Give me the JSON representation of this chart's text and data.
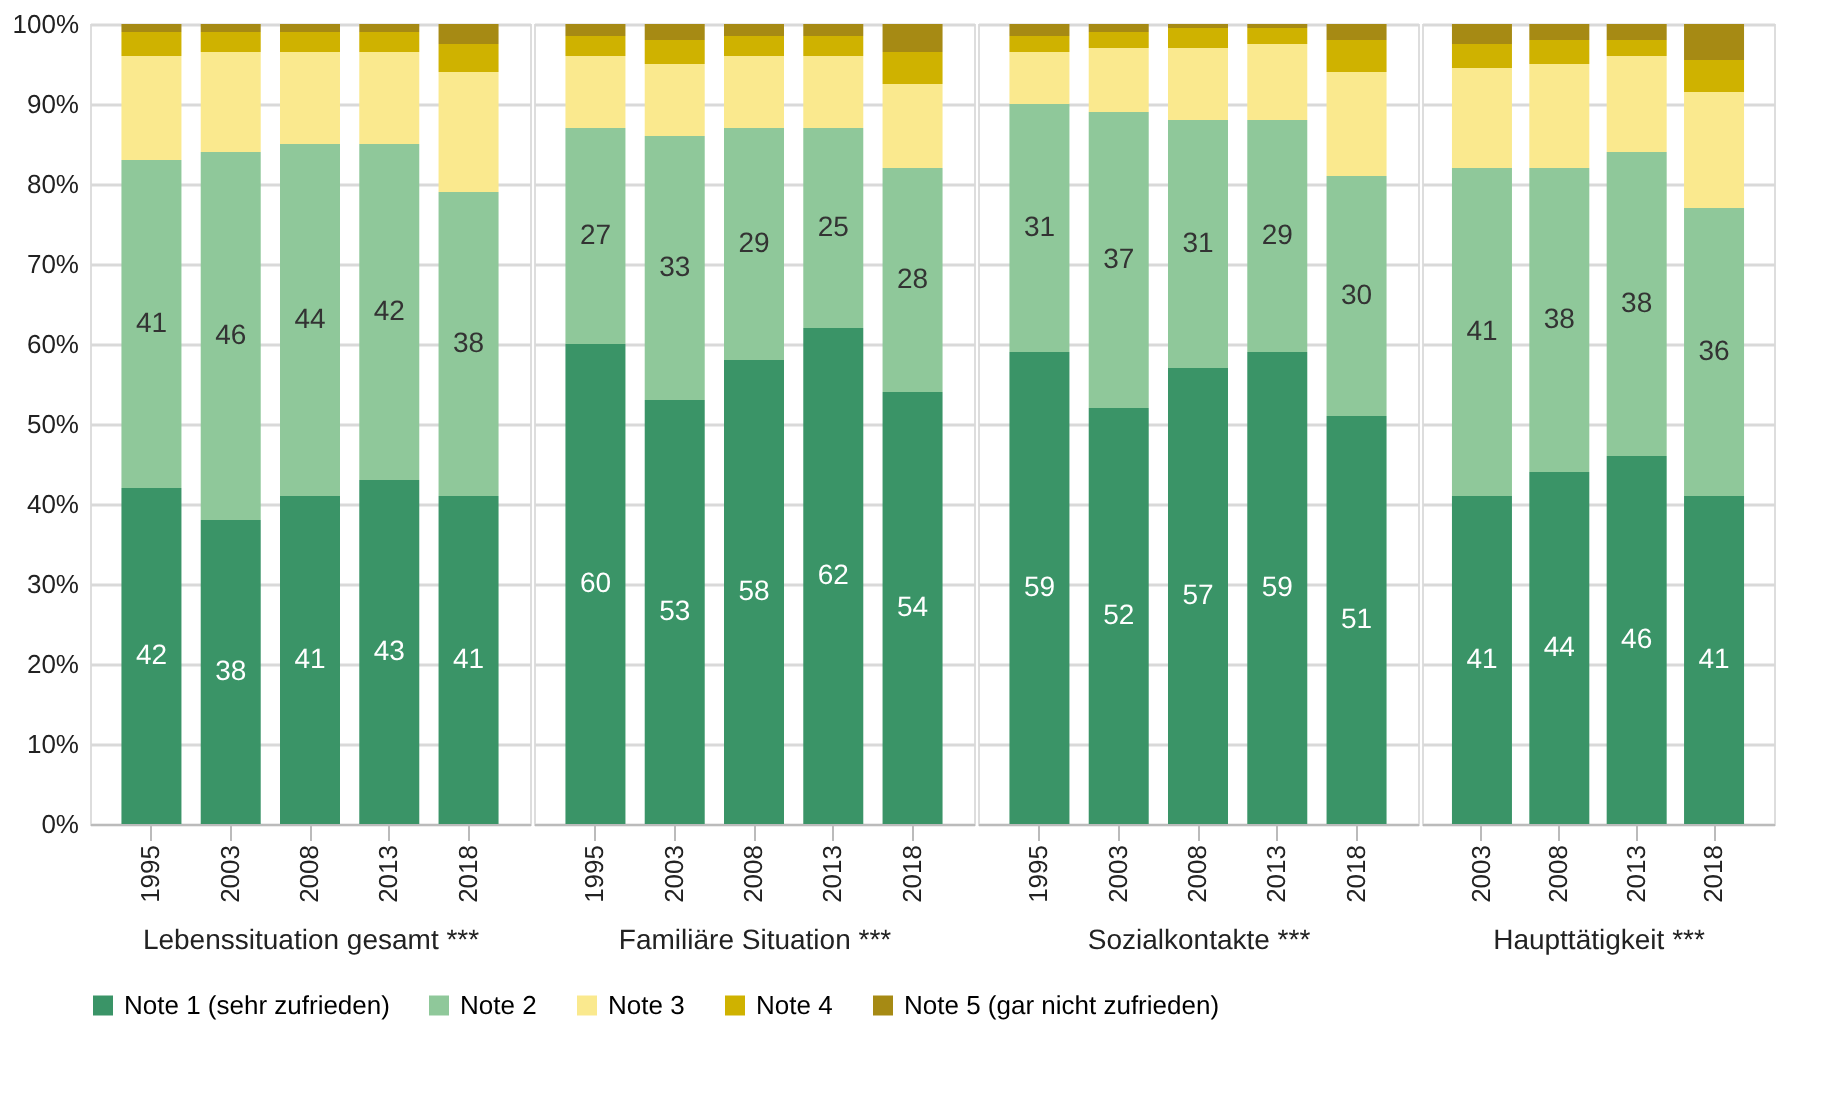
{
  "chart_data": [
    {
      "type": "bar",
      "stacked": true,
      "xlabel": "Lebenssituation gesamt ***",
      "categories": [
        "1995",
        "2003",
        "2008",
        "2013",
        "2018"
      ],
      "ylim": [
        0,
        100
      ],
      "yticks": [
        {
          "value": 0,
          "label": "0%"
        },
        {
          "value": 10,
          "label": "10%"
        },
        {
          "value": 20,
          "label": "20%"
        },
        {
          "value": 30,
          "label": "30%"
        },
        {
          "value": 40,
          "label": "40%"
        },
        {
          "value": 50,
          "label": "50%"
        },
        {
          "value": 60,
          "label": "60%"
        },
        {
          "value": 70,
          "label": "70%"
        },
        {
          "value": 80,
          "label": "80%"
        },
        {
          "value": 90,
          "label": "90%"
        },
        {
          "value": 100,
          "label": "100%"
        }
      ],
      "grid": "y",
      "legend": "bottom",
      "series": [
        {
          "name": "Note 1 (sehr zufrieden)",
          "color": "#3a9467",
          "values": [
            42,
            38,
            41,
            43,
            41
          ],
          "value_labels": [
            "42",
            "38",
            "41",
            "43",
            "41"
          ]
        },
        {
          "name": "Note 2",
          "color": "#8fc89a",
          "values": [
            41,
            46,
            44,
            42,
            38
          ],
          "value_labels": [
            "41",
            "46",
            "44",
            "42",
            "38"
          ]
        },
        {
          "name": "Note 3",
          "color": "#fae98e",
          "values": [
            13,
            12.5,
            11.5,
            11.5,
            15
          ]
        },
        {
          "name": "Note 4",
          "color": "#cfb200",
          "values": [
            3,
            2.5,
            2.5,
            2.5,
            3.5
          ]
        },
        {
          "name": "Note 5 (gar nicht zufrieden)",
          "color": "#a68a14",
          "values": [
            1,
            1,
            1,
            1,
            2.5
          ]
        }
      ]
    },
    {
      "type": "bar",
      "stacked": true,
      "xlabel": "Familiäre Situation ***",
      "categories": [
        "1995",
        "2003",
        "2008",
        "2013",
        "2018"
      ],
      "ylim": [
        0,
        100
      ],
      "yticks": [
        0,
        10,
        20,
        30,
        40,
        50,
        60,
        70,
        80,
        90,
        100
      ],
      "grid": "y",
      "tick_labels": "x",
      "series": [
        {
          "name": "Note 1 (sehr zufrieden)",
          "color": "#3a9467",
          "values": [
            60,
            53,
            58,
            62,
            54
          ],
          "value_labels": [
            "60",
            "53",
            "58",
            "62",
            "54"
          ]
        },
        {
          "name": "Note 2",
          "color": "#8fc89a",
          "values": [
            27,
            33,
            29,
            25,
            28
          ],
          "value_labels": [
            "27",
            "33",
            "29",
            "25",
            "28"
          ]
        },
        {
          "name": "Note 3",
          "color": "#fae98e",
          "values": [
            9,
            9,
            9,
            9,
            10.5
          ]
        },
        {
          "name": "Note 4",
          "color": "#cfb200",
          "values": [
            2.5,
            3,
            2.5,
            2.5,
            4
          ]
        },
        {
          "name": "Note 5 (gar nicht zufrieden)",
          "color": "#a68a14",
          "values": [
            1.5,
            2,
            1.5,
            1.5,
            3.5
          ]
        }
      ]
    },
    {
      "type": "bar",
      "stacked": true,
      "xlabel": "Sozialkontakte ***",
      "categories": [
        "1995",
        "2003",
        "2008",
        "2013",
        "2018"
      ],
      "ylim": [
        0,
        100
      ],
      "yticks": [
        0,
        10,
        20,
        30,
        40,
        50,
        60,
        70,
        80,
        90,
        100
      ],
      "grid": "y",
      "tick_labels": "x",
      "series": [
        {
          "name": "Note 1 (sehr zufrieden)",
          "color": "#3a9467",
          "values": [
            59,
            52,
            57,
            59,
            51
          ],
          "value_labels": [
            "59",
            "52",
            "57",
            "59",
            "51"
          ]
        },
        {
          "name": "Note 2",
          "color": "#8fc89a",
          "values": [
            31,
            37,
            31,
            29,
            30
          ],
          "value_labels": [
            "31",
            "37",
            "31",
            "29",
            "30"
          ]
        },
        {
          "name": "Note 3",
          "color": "#fae98e",
          "values": [
            6.5,
            8,
            9,
            9.5,
            13
          ]
        },
        {
          "name": "Note 4",
          "color": "#cfb200",
          "values": [
            2,
            2,
            2.5,
            2,
            4
          ]
        },
        {
          "name": "Note 5 (gar nicht zufrieden)",
          "color": "#a68a14",
          "values": [
            1.5,
            1,
            0.5,
            0.5,
            2
          ]
        }
      ]
    },
    {
      "type": "bar",
      "stacked": true,
      "xlabel": "Haupttätigkeit ***",
      "categories": [
        "2003",
        "2008",
        "2013",
        "2018"
      ],
      "ylim": [
        0,
        100
      ],
      "yticks": [
        0,
        10,
        20,
        30,
        40,
        50,
        60,
        70,
        80,
        90,
        100
      ],
      "grid": "y",
      "tick_labels": "x",
      "series": [
        {
          "name": "Note 1 (sehr zufrieden)",
          "color": "#3a9467",
          "values": [
            41,
            44,
            46,
            41
          ],
          "value_labels": [
            "41",
            "44",
            "46",
            "41"
          ]
        },
        {
          "name": "Note 2",
          "color": "#8fc89a",
          "values": [
            41,
            38,
            38,
            36
          ],
          "value_labels": [
            "41",
            "38",
            "38",
            "36"
          ]
        },
        {
          "name": "Note 3",
          "color": "#fae98e",
          "values": [
            12.5,
            13,
            12,
            14.5
          ]
        },
        {
          "name": "Note 4",
          "color": "#cfb200",
          "values": [
            3,
            3,
            2,
            4
          ]
        },
        {
          "name": "Note 5 (gar nicht zufrieden)",
          "color": "#a68a14",
          "values": [
            2.5,
            2,
            2,
            4.5
          ]
        }
      ]
    }
  ]
}
